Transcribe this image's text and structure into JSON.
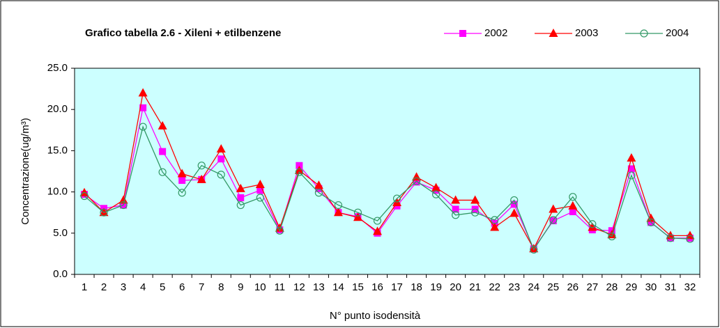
{
  "chart_data": {
    "type": "line",
    "title": "Grafico tabella 2.6 - Xileni + etilbenzene",
    "x_label": "N° punto isodensità",
    "y_label": "Concentrazione(ug/m³)",
    "categories": [
      "1",
      "2",
      "3",
      "4",
      "5",
      "6",
      "7",
      "8",
      "9",
      "10",
      "11",
      "12",
      "13",
      "14",
      "15",
      "16",
      "17",
      "18",
      "19",
      "20",
      "21",
      "22",
      "23",
      "24",
      "25",
      "26",
      "27",
      "28",
      "29",
      "30",
      "31",
      "32"
    ],
    "series": [
      {
        "name": "2002",
        "color": "#ff00ff",
        "marker": "square",
        "values": [
          9.7,
          8.0,
          8.4,
          20.2,
          14.9,
          11.4,
          11.5,
          14.0,
          9.3,
          10.2,
          5.4,
          13.2,
          10.4,
          7.5,
          7.0,
          5.0,
          8.3,
          11.2,
          10.2,
          7.9,
          7.9,
          6.2,
          8.5,
          3.1,
          6.5,
          7.6,
          5.4,
          5.3,
          12.8,
          6.3,
          4.4,
          4.4
        ]
      },
      {
        "name": "2003",
        "color": "#ff0000",
        "marker": "triangle",
        "values": [
          9.9,
          7.5,
          9.0,
          22.0,
          18.0,
          12.2,
          11.5,
          15.2,
          10.4,
          10.9,
          5.6,
          12.6,
          10.8,
          7.5,
          6.9,
          5.2,
          8.7,
          11.8,
          10.5,
          9.0,
          9.0,
          5.7,
          7.4,
          3.1,
          7.9,
          8.3,
          5.7,
          4.8,
          14.1,
          6.8,
          4.7,
          4.7
        ]
      },
      {
        "name": "2004",
        "color": "#339966",
        "marker": "circle",
        "values": [
          9.5,
          7.5,
          8.4,
          17.9,
          12.4,
          9.9,
          13.2,
          12.1,
          8.4,
          9.3,
          5.3,
          12.4,
          9.9,
          8.4,
          7.5,
          6.5,
          9.2,
          11.3,
          9.7,
          7.2,
          7.5,
          6.6,
          9.0,
          3.0,
          6.6,
          9.4,
          6.1,
          4.6,
          12.0,
          6.3,
          4.4,
          4.3
        ]
      }
    ],
    "ylim": [
      0,
      25
    ],
    "yticks": [
      {
        "value": 0,
        "label": "0.0"
      },
      {
        "value": 5,
        "label": "5.0"
      },
      {
        "value": 10,
        "label": "10.0"
      },
      {
        "value": 15,
        "label": "15.0"
      },
      {
        "value": 20,
        "label": "20.0"
      },
      {
        "value": 25,
        "label": "25.0"
      }
    ],
    "legend": "top-right",
    "plot_background": "#ccffff"
  }
}
